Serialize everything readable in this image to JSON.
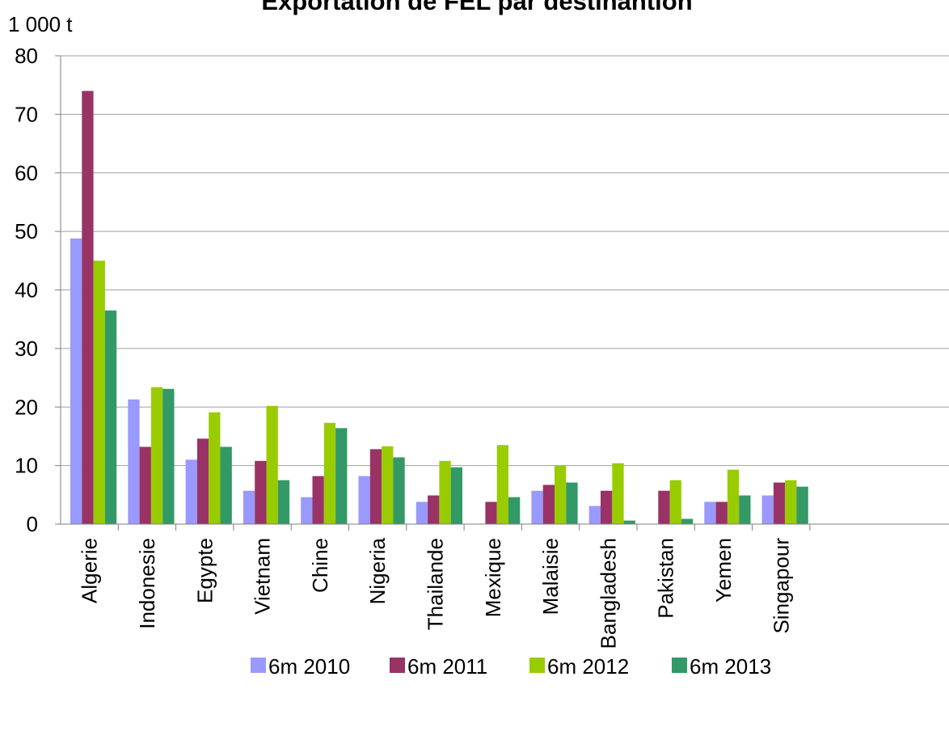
{
  "chart_data": {
    "type": "bar",
    "title": "Exportation de FEL par destinantion",
    "ylabel": "1 000 t",
    "xlabel": "",
    "ylim": [
      0,
      80
    ],
    "yticks": [
      0,
      10,
      20,
      30,
      40,
      50,
      60,
      70,
      80
    ],
    "grid": true,
    "legend_position": "bottom",
    "categories": [
      "Algerie",
      "Indonesie",
      "Egypte",
      "Vietnam",
      "Chine",
      "Nigeria",
      "Thailande",
      "Mexique",
      "Malaisie",
      "Bangladesh",
      "Pakistan",
      "Yemen",
      "Singapour"
    ],
    "series": [
      {
        "name": "6m 2010",
        "color": "#9999ff",
        "values": [
          48.8,
          21.3,
          11,
          5.7,
          4.6,
          8.2,
          3.8,
          0,
          5.7,
          3.1,
          0,
          3.8,
          4.9
        ]
      },
      {
        "name": "6m 2011",
        "color": "#993366",
        "values": [
          74,
          13.2,
          14.6,
          10.8,
          8.2,
          12.8,
          4.9,
          3.8,
          6.7,
          5.7,
          5.7,
          3.8,
          7.1
        ]
      },
      {
        "name": "6m 2012",
        "color": "#99cc00",
        "values": [
          45,
          23.4,
          19.1,
          20.2,
          17.3,
          13.3,
          10.8,
          13.5,
          10,
          10.4,
          7.5,
          9.3,
          7.5
        ]
      },
      {
        "name": "6m 2013",
        "color": "#339966",
        "values": [
          36.5,
          23.1,
          13.2,
          7.5,
          16.4,
          11.4,
          9.7,
          4.6,
          7.1,
          0.6,
          0.9,
          4.9,
          6.4
        ]
      }
    ],
    "colors": {
      "gridline": "#a0a0a0",
      "axis": "#7f7f7f",
      "text": "#000000"
    }
  }
}
